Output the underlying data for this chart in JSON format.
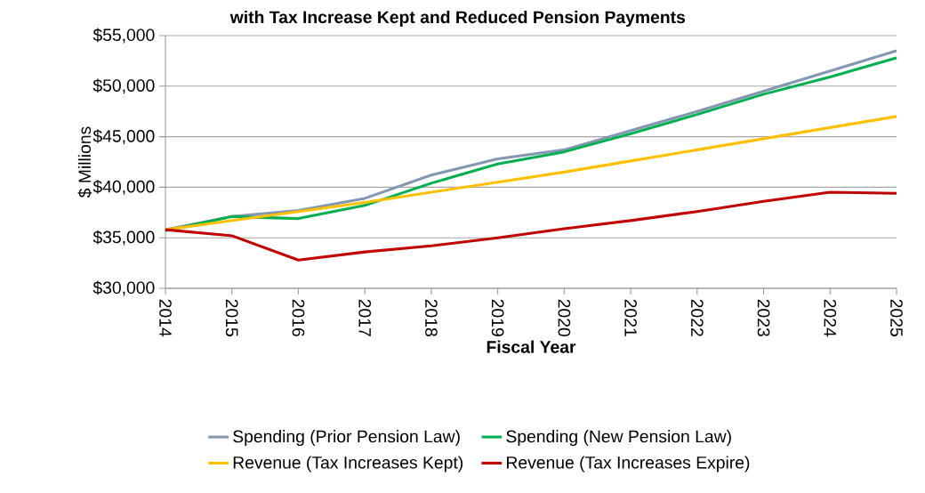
{
  "chart_data": {
    "type": "line",
    "title": "with Tax Increase Kept and Reduced Pension Payments",
    "xlabel": "Fiscal Year",
    "ylabel": "$ Millions",
    "x": [
      2014,
      2015,
      2016,
      2017,
      2018,
      2019,
      2020,
      2021,
      2022,
      2023,
      2024,
      2025
    ],
    "series": [
      {
        "name": "Spending (Prior Pension Law)",
        "color": "#8497b0",
        "values": [
          35800,
          37100,
          37700,
          38900,
          41200,
          42800,
          43700,
          45600,
          47500,
          49500,
          51500,
          53500
        ]
      },
      {
        "name": "Spending (New Pension Law)",
        "color": "#00b050",
        "values": [
          35700,
          37100,
          36900,
          38200,
          40400,
          42300,
          43500,
          45300,
          47200,
          49200,
          50900,
          52800
        ]
      },
      {
        "name": "Revenue (Tax Increases Kept)",
        "color": "#ffc000",
        "values": [
          35800,
          36700,
          37600,
          38500,
          39500,
          40500,
          41500,
          42600,
          43700,
          44800,
          45900,
          47000
        ]
      },
      {
        "name": "Revenue (Tax Increases Expire)",
        "color": "#c00000",
        "values": [
          35800,
          35200,
          32800,
          33600,
          34200,
          35000,
          35900,
          36700,
          37600,
          38600,
          39500,
          39400
        ]
      }
    ],
    "xlim": [
      2014,
      2025
    ],
    "xticks": [
      2014,
      2015,
      2016,
      2017,
      2018,
      2019,
      2020,
      2021,
      2022,
      2023,
      2024,
      2025
    ],
    "ylim": [
      30000,
      55000
    ],
    "yticks": [
      {
        "value": 30000,
        "label": "$30,000"
      },
      {
        "value": 35000,
        "label": "$35,000"
      },
      {
        "value": 40000,
        "label": "$40,000"
      },
      {
        "value": 45000,
        "label": "$45,000"
      },
      {
        "value": 50000,
        "label": "$50,000"
      },
      {
        "value": 55000,
        "label": "$55,000"
      }
    ],
    "grid": "y",
    "legend": "bottom",
    "marker": "none",
    "line_style": "solid"
  }
}
